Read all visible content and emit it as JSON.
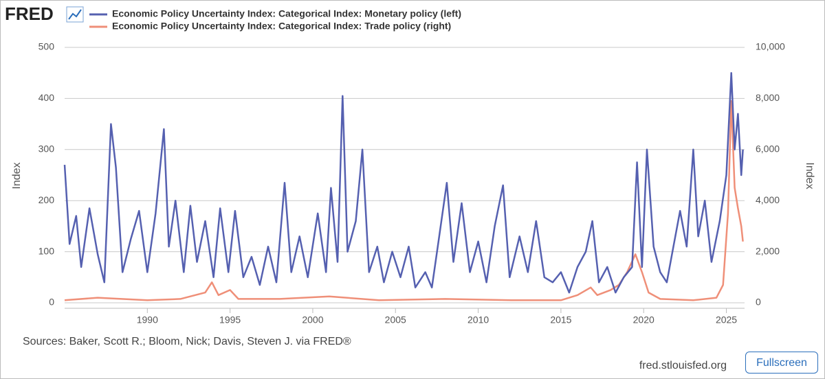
{
  "chart_data": {
    "type": "line",
    "logo": "FRED",
    "ylabel": "Index",
    "y2label": "Index",
    "source": "Sources: Baker, Scott R.; Bloom, Nick; Davis, Steven J. via FRED®",
    "site": "fred.stlouisfed.org",
    "fullscreen": "Fullscreen",
    "xlim": [
      1985,
      2026.1
    ],
    "xticks": [
      1990,
      1995,
      2000,
      2005,
      2010,
      2015,
      2020,
      2025
    ],
    "ylim": [
      0,
      500
    ],
    "yticks": [
      0,
      100,
      200,
      300,
      400,
      500
    ],
    "y2lim": [
      0,
      10000
    ],
    "y2ticks": [
      0,
      {
        "value": 2000,
        "label": "2,000"
      },
      {
        "value": 4000,
        "label": "4,000"
      },
      {
        "value": 6000,
        "label": "6,000"
      },
      {
        "value": 8000,
        "label": "8,000"
      },
      {
        "value": 10000,
        "label": "10,000"
      }
    ],
    "grid": true,
    "series": [
      {
        "name": "Economic Policy Uncertainty Index: Categorical Index: Monetary policy (left)",
        "color": "#5560b0",
        "axis": "y",
        "x": [
          1985.0,
          1985.3,
          1985.7,
          1986.0,
          1986.5,
          1987.0,
          1987.4,
          1987.8,
          1988.1,
          1988.5,
          1989.0,
          1989.5,
          1990.0,
          1990.5,
          1991.0,
          1991.3,
          1991.7,
          1992.2,
          1992.6,
          1993.0,
          1993.5,
          1994.0,
          1994.4,
          1994.9,
          1995.3,
          1995.8,
          1996.3,
          1996.8,
          1997.3,
          1997.8,
          1998.3,
          1998.7,
          1999.2,
          1999.7,
          2000.3,
          2000.8,
          2001.1,
          2001.5,
          2001.8,
          2002.1,
          2002.6,
          2003.0,
          2003.4,
          2003.9,
          2004.3,
          2004.8,
          2005.3,
          2005.8,
          2006.2,
          2006.8,
          2007.2,
          2007.6,
          2008.1,
          2008.5,
          2009.0,
          2009.5,
          2010.0,
          2010.5,
          2011.0,
          2011.5,
          2011.9,
          2012.5,
          2013.0,
          2013.5,
          2014.0,
          2014.5,
          2015.0,
          2015.5,
          2016.0,
          2016.5,
          2016.9,
          2017.3,
          2017.8,
          2018.3,
          2018.8,
          2019.3,
          2019.6,
          2019.9,
          2020.2,
          2020.6,
          2021.0,
          2021.4,
          2021.8,
          2022.2,
          2022.6,
          2023.0,
          2023.3,
          2023.7,
          2024.1,
          2024.6,
          2025.0,
          2025.3,
          2025.5,
          2025.7,
          2025.9,
          2026.0
        ],
        "values": [
          270,
          115,
          170,
          70,
          185,
          95,
          40,
          350,
          265,
          60,
          125,
          180,
          60,
          175,
          340,
          110,
          200,
          60,
          190,
          80,
          160,
          50,
          185,
          60,
          180,
          50,
          90,
          35,
          110,
          40,
          235,
          60,
          130,
          50,
          175,
          60,
          225,
          80,
          405,
          100,
          160,
          300,
          60,
          110,
          40,
          100,
          50,
          110,
          30,
          60,
          30,
          120,
          235,
          80,
          195,
          60,
          120,
          40,
          150,
          230,
          50,
          130,
          60,
          160,
          50,
          40,
          60,
          20,
          70,
          100,
          160,
          40,
          70,
          20,
          50,
          70,
          275,
          70,
          300,
          110,
          60,
          40,
          110,
          180,
          110,
          300,
          130,
          200,
          80,
          160,
          250,
          450,
          300,
          370,
          250,
          300
        ]
      },
      {
        "name": "Economic Policy Uncertainty Index: Categorical Index: Trade policy (right)",
        "color": "#ef8f78",
        "axis": "y2",
        "x": [
          1985.0,
          1987.0,
          1990.0,
          1992.0,
          1993.5,
          1993.9,
          1994.3,
          1995.0,
          1995.5,
          1998.0,
          2001.0,
          2004.0,
          2008.0,
          2012.0,
          2015.0,
          2016.0,
          2016.8,
          2017.2,
          2018.0,
          2018.5,
          2019.0,
          2019.5,
          2019.9,
          2020.3,
          2021.0,
          2023.0,
          2024.4,
          2024.8,
          2025.1,
          2025.3,
          2025.5,
          2025.7,
          2025.9,
          2026.0
        ],
        "values": [
          100,
          200,
          100,
          150,
          400,
          800,
          300,
          500,
          150,
          150,
          250,
          100,
          150,
          100,
          100,
          300,
          600,
          300,
          500,
          700,
          1200,
          1900,
          1200,
          400,
          150,
          100,
          200,
          700,
          3500,
          7900,
          4500,
          3700,
          3000,
          2400
        ]
      }
    ]
  }
}
